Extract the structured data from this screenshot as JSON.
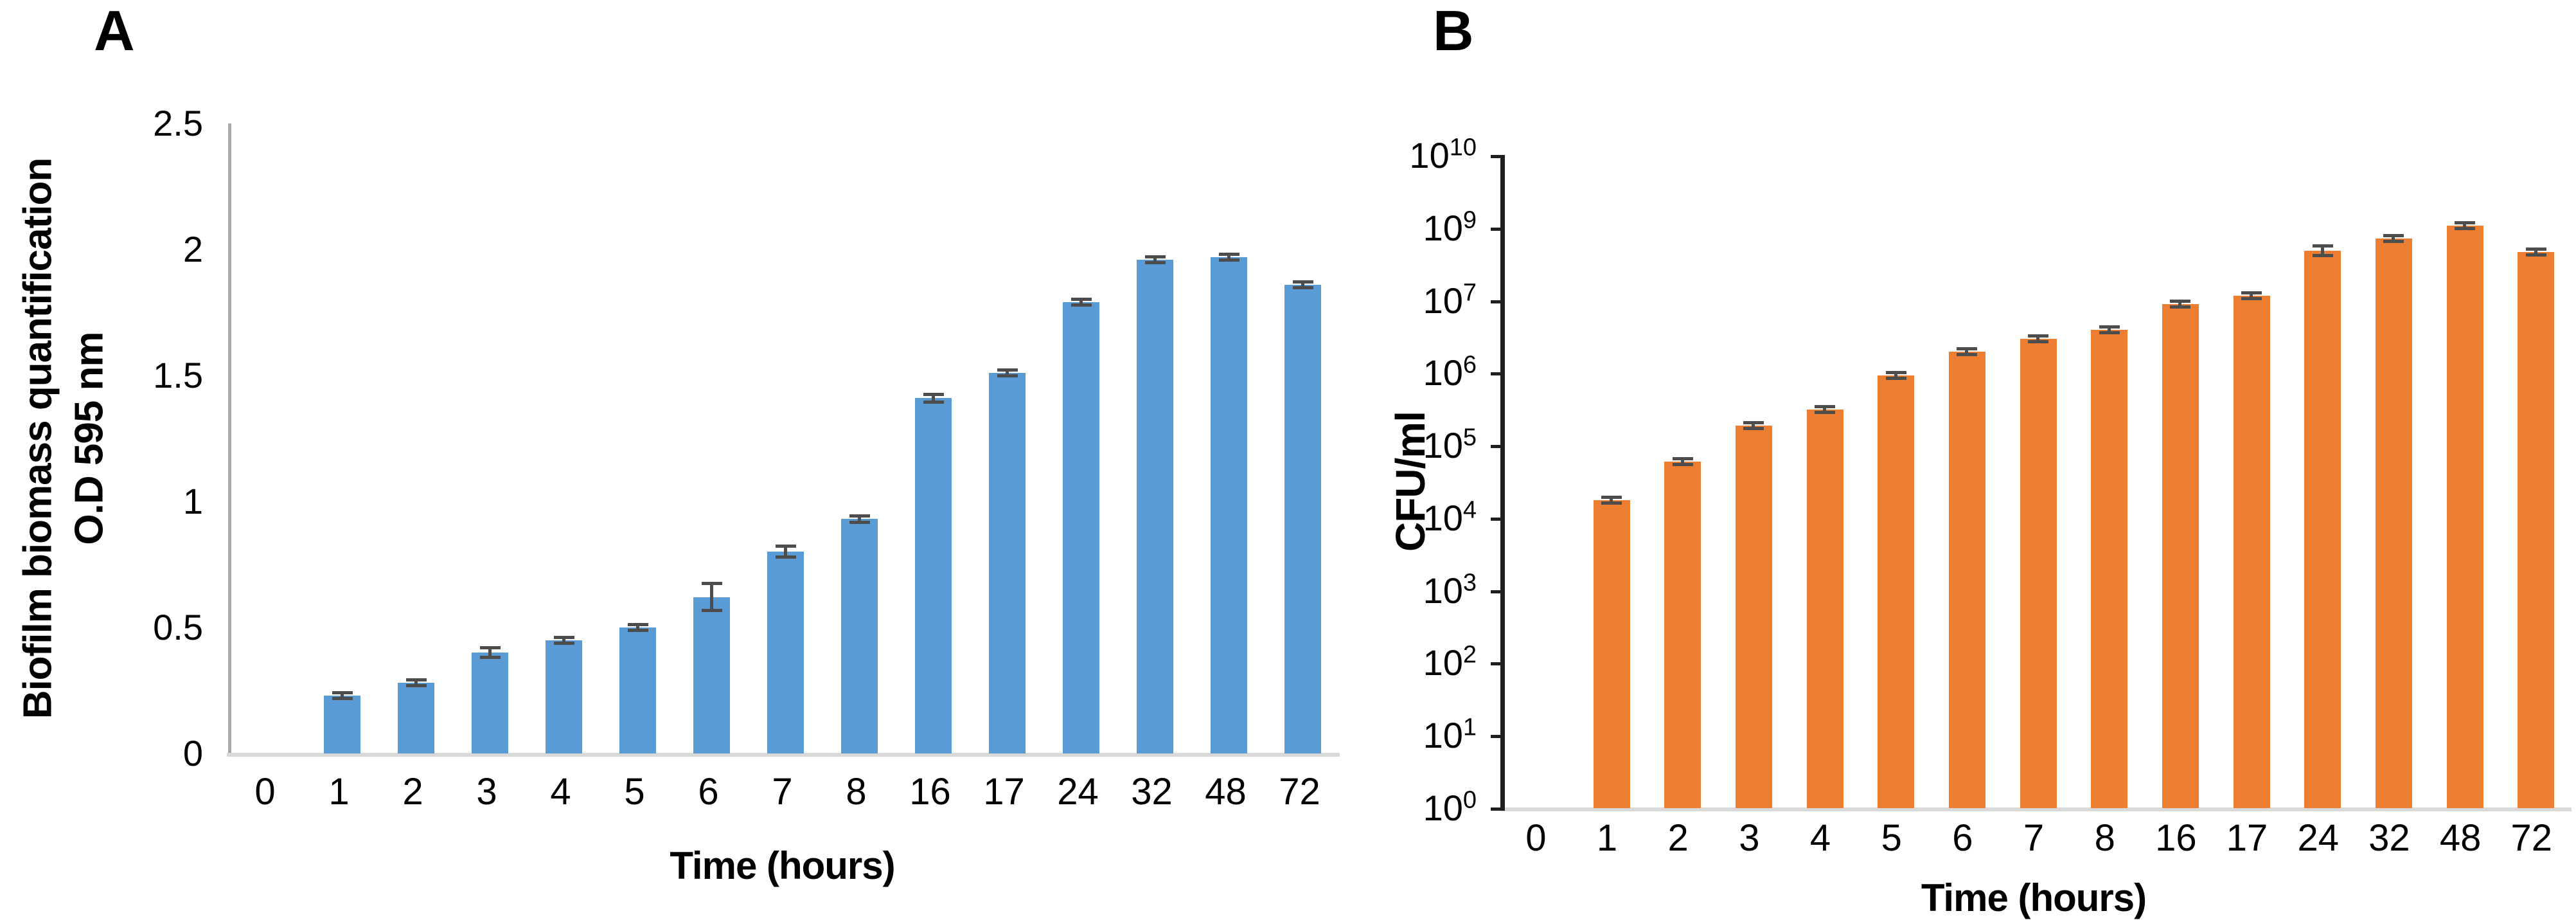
{
  "figure": {
    "background": "#FFFFFF",
    "panel_a": {
      "letter": "A",
      "y_title_line1": "Biofilm biomass quantification",
      "y_title_line2": "O.D 595 nm",
      "x_title": "Time (hours)"
    },
    "panel_b": {
      "letter": "B",
      "y_title": "CFU/ml",
      "x_title": "Time (hours)"
    }
  },
  "chart_data": [
    {
      "id": "panel-a-biofilm-biomass",
      "type": "bar",
      "title": "",
      "categories": [
        "0",
        "1",
        "2",
        "3",
        "4",
        "5",
        "6",
        "7",
        "8",
        "16",
        "17",
        "24",
        "32",
        "48",
        "72"
      ],
      "values": [
        0,
        0.23,
        0.28,
        0.4,
        0.45,
        0.5,
        0.62,
        0.8,
        0.93,
        1.41,
        1.51,
        1.79,
        1.96,
        1.97,
        1.86
      ],
      "errors": [
        0,
        0.012,
        0.012,
        0.025,
        0.018,
        0.012,
        0.06,
        0.028,
        0.018,
        0.022,
        0.012,
        0.01,
        0.01,
        0.012,
        0.01
      ],
      "xlabel": "Time (hours)",
      "ylabel": "Biofilm biomass quantification O.D 595 nm",
      "ylim": [
        0,
        2.5
      ],
      "y_ticks": [
        2.5,
        2,
        1.5,
        1,
        0.5,
        0
      ],
      "y_tick_labels": [
        "2.5",
        "2",
        "1.5",
        "1",
        "0.5",
        "0"
      ],
      "grid": false,
      "legend": false,
      "bar_color": "#5B9BD5",
      "error_color": "#4D4D4D"
    },
    {
      "id": "panel-b-cfu",
      "type": "bar",
      "title": "",
      "y_scale": "log, decade labels evenly spaced as printed (no 10^8 label)",
      "categories": [
        "0",
        "1",
        "2",
        "3",
        "4",
        "5",
        "6",
        "7",
        "8",
        "16",
        "17",
        "24",
        "32",
        "48",
        "72"
      ],
      "values": [
        0,
        18000.0,
        60000.0,
        190000.0,
        320000.0,
        930000.0,
        2000000.0,
        3000000.0,
        4000000.0,
        9000000.0,
        14000000.0,
        240000000.0,
        520000000.0,
        1100000000.0,
        220000000.0
      ],
      "display_levels": [
        0,
        4.25,
        4.78,
        5.28,
        5.5,
        5.97,
        6.3,
        6.47,
        6.6,
        6.95,
        7.07,
        7.69,
        7.86,
        8.03,
        7.67
      ],
      "error_levels": [
        0,
        0.05,
        0.05,
        0.05,
        0.05,
        0.04,
        0.04,
        0.04,
        0.04,
        0.05,
        0.05,
        0.09,
        0.04,
        0.04,
        0.04
      ],
      "axis_steps": 9,
      "xlabel": "Time (hours)",
      "ylabel": "CFU/ml",
      "y_tick_labels": [
        "10^10",
        "10^9",
        "10^7",
        "10^6",
        "10^5",
        "10^4",
        "10^3",
        "10^2",
        "10^1",
        "10^0"
      ],
      "grid": false,
      "legend": false,
      "bar_color": "#ED7D31",
      "error_color": "#4D4D4D",
      "axis_tick_marks": true
    }
  ]
}
